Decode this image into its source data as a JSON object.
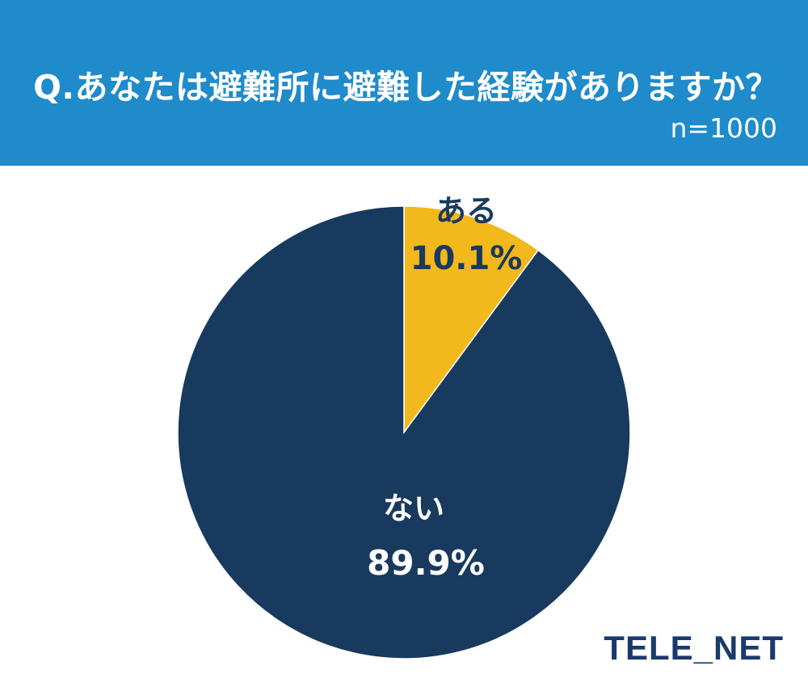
{
  "header": {
    "question": "Q.あなたは避難所に避難した経験がありますか？",
    "sample_size": "n=1000"
  },
  "chart_data": {
    "type": "pie",
    "slices": [
      {
        "label": "ある",
        "value": 10.1,
        "value_label": "10.1%",
        "color": "#f2b81c"
      },
      {
        "label": "ない",
        "value": 89.9,
        "value_label": "89.9%",
        "color": "#183a5e"
      }
    ],
    "start": "12 o'clock",
    "direction": "clockwise"
  },
  "logo": "TELE_NET",
  "colors": {
    "header_bg": "#1f8bcb",
    "accent_yes": "#f2b81c",
    "accent_no": "#183a5e"
  }
}
